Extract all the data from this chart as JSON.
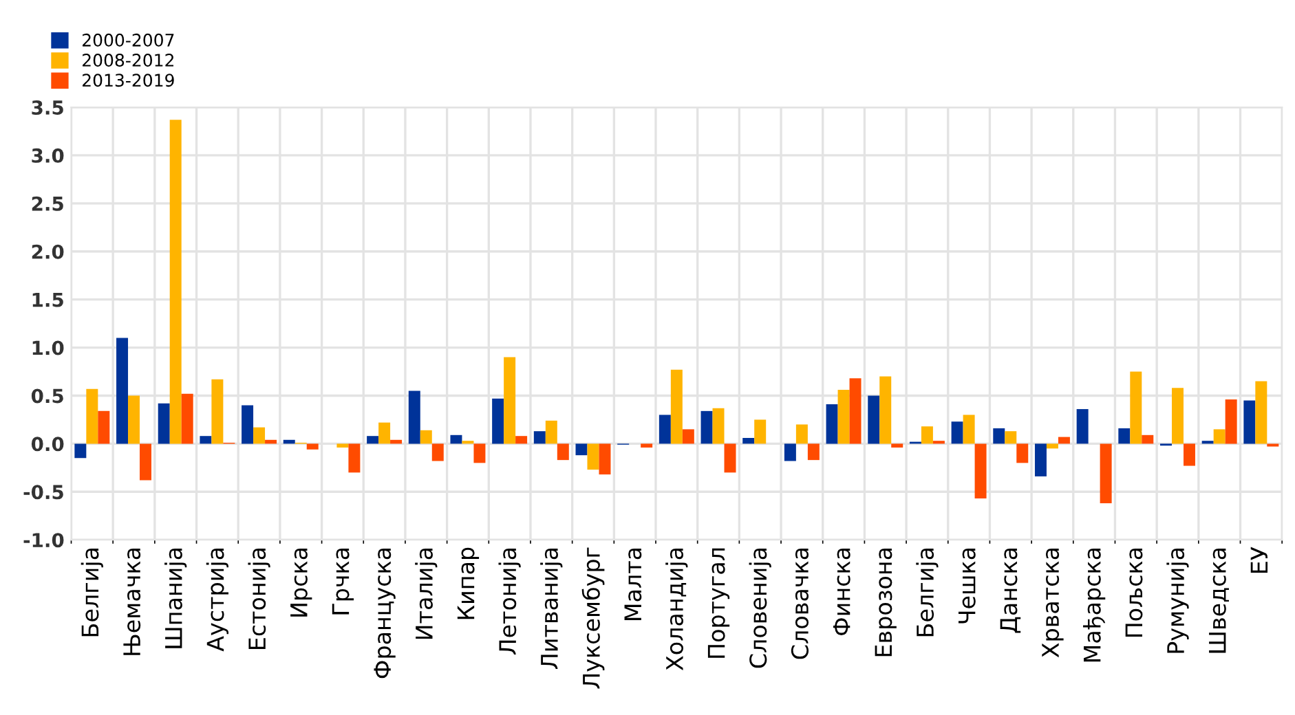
{
  "chart_data": {
    "type": "bar",
    "categories": [
      "Белгија",
      "Њемачка",
      "Шпанија",
      "Аустрија",
      "Естонија",
      "Ирска",
      "Грчка",
      "Француска",
      "Италија",
      "Кипар",
      "Летонија",
      "Литванија",
      "Луксембург",
      "Малта",
      "Холандија",
      "Португал",
      "Словенија",
      "Словачка",
      "Финска",
      "Еврозона",
      "Белгија",
      "Чешка",
      "Данска",
      "Хрватска",
      "Мађарска",
      "Пољска",
      "Румунија",
      "Шведска",
      "ЕУ"
    ],
    "series": [
      {
        "name": "2000-2007",
        "color": "#003399",
        "values": [
          -0.15,
          1.1,
          0.42,
          0.08,
          0.4,
          0.04,
          0.0,
          0.08,
          0.55,
          0.09,
          0.47,
          0.13,
          -0.12,
          -0.01,
          0.3,
          0.34,
          0.06,
          -0.18,
          0.41,
          0.5,
          0.02,
          0.23,
          0.16,
          -0.34,
          0.36,
          0.16,
          -0.02,
          0.03,
          0.45
        ]
      },
      {
        "name": "2008-2012",
        "color": "#ffb400",
        "values": [
          0.57,
          0.5,
          3.37,
          0.67,
          0.17,
          0.01,
          -0.04,
          0.22,
          0.14,
          0.03,
          0.9,
          0.24,
          -0.27,
          0.0,
          0.77,
          0.37,
          0.25,
          0.2,
          0.56,
          0.7,
          0.18,
          0.3,
          0.13,
          -0.05,
          0.0,
          0.75,
          0.58,
          0.15,
          0.65
        ]
      },
      {
        "name": "2013-2019",
        "color": "#ff4b00",
        "values": [
          0.34,
          -0.38,
          0.52,
          0.01,
          0.04,
          -0.06,
          -0.3,
          0.04,
          -0.18,
          -0.2,
          0.08,
          -0.17,
          -0.32,
          -0.04,
          0.15,
          -0.3,
          0.0,
          -0.17,
          0.68,
          -0.04,
          0.03,
          -0.57,
          -0.2,
          0.07,
          -0.62,
          0.09,
          -0.23,
          0.46,
          -0.03
        ]
      }
    ],
    "ylim": [
      -1.0,
      3.5
    ],
    "yticks": [
      {
        "value": -1.0,
        "label": "-1.0"
      },
      {
        "value": -0.5,
        "label": "-0.5"
      },
      {
        "value": 0.0,
        "label": "0.0"
      },
      {
        "value": 0.5,
        "label": "0.5"
      },
      {
        "value": 1.0,
        "label": "1.0"
      },
      {
        "value": 1.5,
        "label": "1.5"
      },
      {
        "value": 2.0,
        "label": "2.0"
      },
      {
        "value": 2.5,
        "label": "2.5"
      },
      {
        "value": 3.0,
        "label": "3.0"
      },
      {
        "value": 3.5,
        "label": "3.5"
      }
    ],
    "grid": true,
    "legend": "top left"
  }
}
